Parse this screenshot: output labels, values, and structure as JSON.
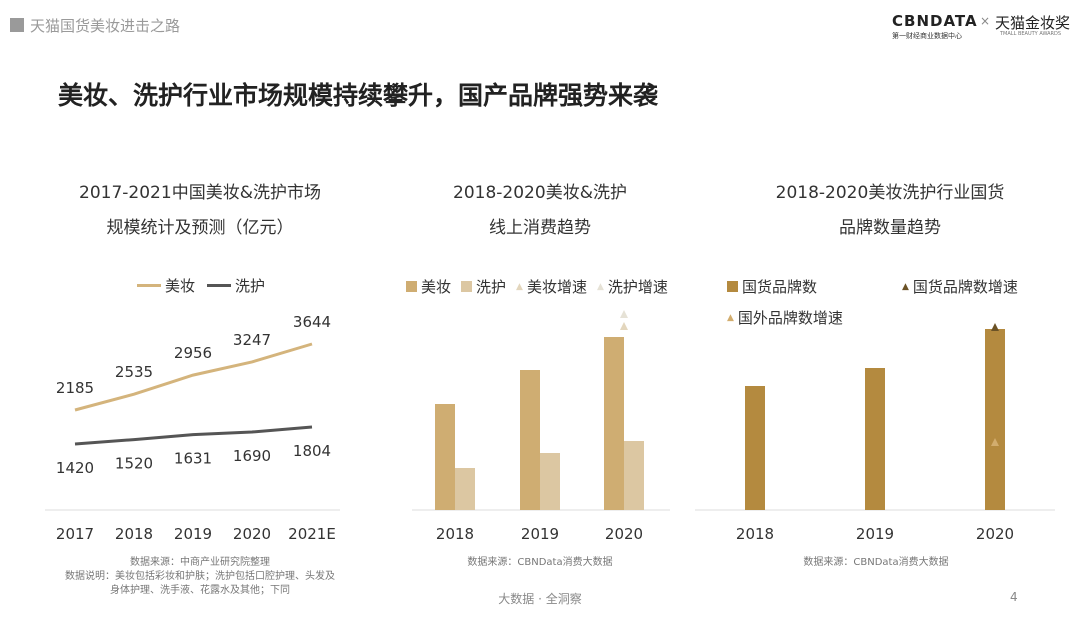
{
  "header": {
    "section": "天猫国货美妆进击之路",
    "logo_cbn": "CBNDATA",
    "logo_cbn_sub": "第一财经商业数据中心",
    "logo_x": "×",
    "logo_tmall": "天猫金妆奖",
    "logo_tmall_sub": "TMALL BEAUTY AWARDS"
  },
  "title": "美妆、洗护行业市场规模持续攀升，国产品牌强势来袭",
  "footer": {
    "tagline": "大数据 · 全洞察",
    "page": "4"
  },
  "colors": {
    "beauty": "#cfad72",
    "care": "#dcc7a2",
    "domestic": "#b48a3f",
    "dark_tri": "#6b5226",
    "line_beauty": "#d4b47c",
    "line_care": "#555555"
  },
  "chart_data": [
    {
      "type": "line",
      "title_lines": [
        "2017-2021中国美妆&洗护市场",
        "规模统计及预测（亿元）"
      ],
      "categories": [
        "2017",
        "2018",
        "2019",
        "2020",
        "2021E"
      ],
      "series": [
        {
          "name": "美妆",
          "values": [
            2185,
            2535,
            2956,
            3247,
            3644
          ]
        },
        {
          "name": "洗护",
          "values": [
            1420,
            1520,
            1631,
            1690,
            1804
          ]
        }
      ],
      "legend": "top",
      "grid": false,
      "source": "数据来源：中商产业研究院整理",
      "notes": [
        "数据说明：美妆包括彩妆和护肤；洗护包括口腔护理、头发及",
        "身体护理、洗手液、花露水及其他；下同"
      ]
    },
    {
      "type": "bar",
      "title_lines": [
        "2018-2020美妆&洗护",
        "线上消费趋势"
      ],
      "categories": [
        "2018",
        "2019",
        "2020"
      ],
      "series": [
        {
          "name": "美妆",
          "values": [
            106,
            140,
            173
          ]
        },
        {
          "name": "洗护",
          "values": [
            42,
            57,
            69
          ]
        }
      ],
      "markers": [
        {
          "name": "美妆增速",
          "values": [
            null,
            null,
            184
          ]
        },
        {
          "name": "洗护增速",
          "values": [
            null,
            null,
            196
          ]
        }
      ],
      "legend": "top",
      "grid": false,
      "y_axis_labels": false,
      "source": "数据来源：CBNData消费大数据"
    },
    {
      "type": "bar",
      "title_lines": [
        "2018-2020美妆洗护行业国货",
        "品牌数量趋势"
      ],
      "categories": [
        "2018",
        "2019",
        "2020"
      ],
      "series": [
        {
          "name": "国货品牌数",
          "values": [
            124,
            142,
            181
          ]
        }
      ],
      "markers": [
        {
          "name": "国货品牌数增速",
          "values": [
            null,
            null,
            183
          ]
        },
        {
          "name": "国外品牌数增速",
          "values": [
            null,
            null,
            68
          ]
        }
      ],
      "legend": "top",
      "grid": false,
      "y_axis_labels": false,
      "source": "数据来源：CBNData消费大数据"
    }
  ]
}
